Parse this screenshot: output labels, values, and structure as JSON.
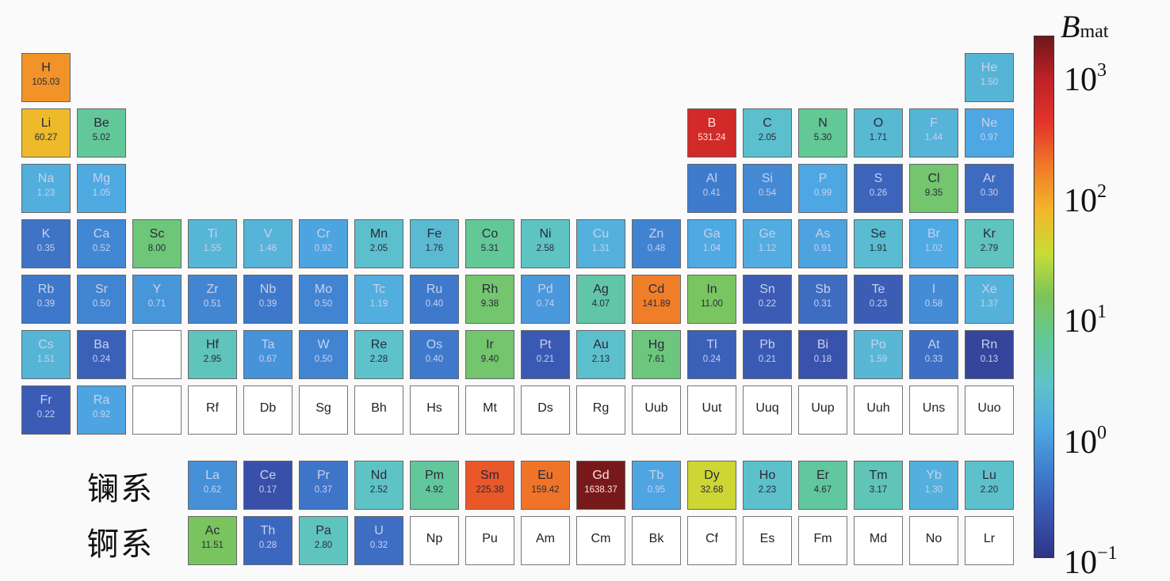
{
  "chart_data": {
    "type": "heatmap",
    "layout": "periodic-table",
    "colorbar": {
      "title": "B",
      "title_subscript": "mat",
      "scale": "log",
      "range": [
        0.085,
        1800
      ],
      "ticks": [
        {
          "base": "10",
          "exp": "3",
          "value": 1000
        },
        {
          "base": "10",
          "exp": "2",
          "value": 100
        },
        {
          "base": "10",
          "exp": "1",
          "value": 10
        },
        {
          "base": "10",
          "exp": "0",
          "value": 1
        },
        {
          "base": "10",
          "exp": "−1",
          "value": 0.1
        }
      ],
      "colormap": [
        "#2e3585",
        "#3a55b0",
        "#3f7fcf",
        "#4fa9e3",
        "#5ec3c9",
        "#62c895",
        "#7cc45a",
        "#c5dd35",
        "#f2b62a",
        "#f07a28",
        "#e4342a",
        "#c02128",
        "#6e1818"
      ]
    },
    "series_labels": {
      "lanthanides": "镧系",
      "actinides": "锕系"
    },
    "elements": [
      {
        "s": "H",
        "v": "105.03",
        "p": 1,
        "g": 1
      },
      {
        "s": "He",
        "v": "1.50",
        "p": 1,
        "g": 18
      },
      {
        "s": "Li",
        "v": "60.27",
        "p": 2,
        "g": 1
      },
      {
        "s": "Be",
        "v": "5.02",
        "p": 2,
        "g": 2
      },
      {
        "s": "B",
        "v": "531.24",
        "p": 2,
        "g": 13
      },
      {
        "s": "C",
        "v": "2.05",
        "p": 2,
        "g": 14
      },
      {
        "s": "N",
        "v": "5.30",
        "p": 2,
        "g": 15
      },
      {
        "s": "O",
        "v": "1.71",
        "p": 2,
        "g": 16
      },
      {
        "s": "F",
        "v": "1.44",
        "p": 2,
        "g": 17
      },
      {
        "s": "Ne",
        "v": "0.97",
        "p": 2,
        "g": 18
      },
      {
        "s": "Na",
        "v": "1.23",
        "p": 3,
        "g": 1
      },
      {
        "s": "Mg",
        "v": "1.05",
        "p": 3,
        "g": 2
      },
      {
        "s": "Al",
        "v": "0.41",
        "p": 3,
        "g": 13
      },
      {
        "s": "Si",
        "v": "0.54",
        "p": 3,
        "g": 14
      },
      {
        "s": "P",
        "v": "0.99",
        "p": 3,
        "g": 15
      },
      {
        "s": "S",
        "v": "0.26",
        "p": 3,
        "g": 16
      },
      {
        "s": "Cl",
        "v": "9.35",
        "p": 3,
        "g": 17
      },
      {
        "s": "Ar",
        "v": "0.30",
        "p": 3,
        "g": 18
      },
      {
        "s": "K",
        "v": "0.35",
        "p": 4,
        "g": 1
      },
      {
        "s": "Ca",
        "v": "0.52",
        "p": 4,
        "g": 2
      },
      {
        "s": "Sc",
        "v": "8.00",
        "p": 4,
        "g": 3
      },
      {
        "s": "Ti",
        "v": "1.55",
        "p": 4,
        "g": 4
      },
      {
        "s": "V",
        "v": "1.46",
        "p": 4,
        "g": 5
      },
      {
        "s": "Cr",
        "v": "0.92",
        "p": 4,
        "g": 6
      },
      {
        "s": "Mn",
        "v": "2.05",
        "p": 4,
        "g": 7
      },
      {
        "s": "Fe",
        "v": "1.76",
        "p": 4,
        "g": 8
      },
      {
        "s": "Co",
        "v": "5.31",
        "p": 4,
        "g": 9
      },
      {
        "s": "Ni",
        "v": "2.58",
        "p": 4,
        "g": 10
      },
      {
        "s": "Cu",
        "v": "1.31",
        "p": 4,
        "g": 11
      },
      {
        "s": "Zn",
        "v": "0.48",
        "p": 4,
        "g": 12
      },
      {
        "s": "Ga",
        "v": "1.04",
        "p": 4,
        "g": 13
      },
      {
        "s": "Ge",
        "v": "1.12",
        "p": 4,
        "g": 14
      },
      {
        "s": "As",
        "v": "0.91",
        "p": 4,
        "g": 15
      },
      {
        "s": "Se",
        "v": "1.91",
        "p": 4,
        "g": 16
      },
      {
        "s": "Br",
        "v": "1.02",
        "p": 4,
        "g": 17
      },
      {
        "s": "Kr",
        "v": "2.79",
        "p": 4,
        "g": 18
      },
      {
        "s": "Rb",
        "v": "0.39",
        "p": 5,
        "g": 1
      },
      {
        "s": "Sr",
        "v": "0.50",
        "p": 5,
        "g": 2
      },
      {
        "s": "Y",
        "v": "0.71",
        "p": 5,
        "g": 3
      },
      {
        "s": "Zr",
        "v": "0.51",
        "p": 5,
        "g": 4
      },
      {
        "s": "Nb",
        "v": "0.39",
        "p": 5,
        "g": 5
      },
      {
        "s": "Mo",
        "v": "0.50",
        "p": 5,
        "g": 6
      },
      {
        "s": "Tc",
        "v": "1.19",
        "p": 5,
        "g": 7
      },
      {
        "s": "Ru",
        "v": "0.40",
        "p": 5,
        "g": 8
      },
      {
        "s": "Rh",
        "v": "9.38",
        "p": 5,
        "g": 9
      },
      {
        "s": "Pd",
        "v": "0.74",
        "p": 5,
        "g": 10
      },
      {
        "s": "Ag",
        "v": "4.07",
        "p": 5,
        "g": 11
      },
      {
        "s": "Cd",
        "v": "141.89",
        "p": 5,
        "g": 12
      },
      {
        "s": "In",
        "v": "11.00",
        "p": 5,
        "g": 13
      },
      {
        "s": "Sn",
        "v": "0.22",
        "p": 5,
        "g": 14
      },
      {
        "s": "Sb",
        "v": "0.31",
        "p": 5,
        "g": 15
      },
      {
        "s": "Te",
        "v": "0.23",
        "p": 5,
        "g": 16
      },
      {
        "s": "I",
        "v": "0.58",
        "p": 5,
        "g": 17
      },
      {
        "s": "Xe",
        "v": "1.37",
        "p": 5,
        "g": 18
      },
      {
        "s": "Cs",
        "v": "1.51",
        "p": 6,
        "g": 1
      },
      {
        "s": "Ba",
        "v": "0.24",
        "p": 6,
        "g": 2
      },
      {
        "s": "",
        "v": null,
        "p": 6,
        "g": 3
      },
      {
        "s": "Hf",
        "v": "2.95",
        "p": 6,
        "g": 4
      },
      {
        "s": "Ta",
        "v": "0.67",
        "p": 6,
        "g": 5
      },
      {
        "s": "W",
        "v": "0.50",
        "p": 6,
        "g": 6
      },
      {
        "s": "Re",
        "v": "2.28",
        "p": 6,
        "g": 7
      },
      {
        "s": "Os",
        "v": "0.40",
        "p": 6,
        "g": 8
      },
      {
        "s": "Ir",
        "v": "9.40",
        "p": 6,
        "g": 9
      },
      {
        "s": "Pt",
        "v": "0.21",
        "p": 6,
        "g": 10
      },
      {
        "s": "Au",
        "v": "2.13",
        "p": 6,
        "g": 11
      },
      {
        "s": "Hg",
        "v": "7.61",
        "p": 6,
        "g": 12
      },
      {
        "s": "Tl",
        "v": "0.24",
        "p": 6,
        "g": 13
      },
      {
        "s": "Pb",
        "v": "0.21",
        "p": 6,
        "g": 14
      },
      {
        "s": "Bi",
        "v": "0.18",
        "p": 6,
        "g": 15
      },
      {
        "s": "Po",
        "v": "1.59",
        "p": 6,
        "g": 16
      },
      {
        "s": "At",
        "v": "0.33",
        "p": 6,
        "g": 17
      },
      {
        "s": "Rn",
        "v": "0.13",
        "p": 6,
        "g": 18
      },
      {
        "s": "Fr",
        "v": "0.22",
        "p": 7,
        "g": 1
      },
      {
        "s": "Ra",
        "v": "0.92",
        "p": 7,
        "g": 2
      },
      {
        "s": "",
        "v": null,
        "p": 7,
        "g": 3
      },
      {
        "s": "Rf",
        "v": null,
        "p": 7,
        "g": 4
      },
      {
        "s": "Db",
        "v": null,
        "p": 7,
        "g": 5
      },
      {
        "s": "Sg",
        "v": null,
        "p": 7,
        "g": 6
      },
      {
        "s": "Bh",
        "v": null,
        "p": 7,
        "g": 7
      },
      {
        "s": "Hs",
        "v": null,
        "p": 7,
        "g": 8
      },
      {
        "s": "Mt",
        "v": null,
        "p": 7,
        "g": 9
      },
      {
        "s": "Ds",
        "v": null,
        "p": 7,
        "g": 10
      },
      {
        "s": "Rg",
        "v": null,
        "p": 7,
        "g": 11
      },
      {
        "s": "Uub",
        "v": null,
        "p": 7,
        "g": 12
      },
      {
        "s": "Uut",
        "v": null,
        "p": 7,
        "g": 13
      },
      {
        "s": "Uuq",
        "v": null,
        "p": 7,
        "g": 14
      },
      {
        "s": "Uup",
        "v": null,
        "p": 7,
        "g": 15
      },
      {
        "s": "Uuh",
        "v": null,
        "p": 7,
        "g": 16
      },
      {
        "s": "Uns",
        "v": null,
        "p": 7,
        "g": 17
      },
      {
        "s": "Uuo",
        "v": null,
        "p": 7,
        "g": 18
      },
      {
        "s": "La",
        "v": "0.62",
        "p": "La",
        "g": 4
      },
      {
        "s": "Ce",
        "v": "0.17",
        "p": "La",
        "g": 5
      },
      {
        "s": "Pr",
        "v": "0.37",
        "p": "La",
        "g": 6
      },
      {
        "s": "Nd",
        "v": "2.52",
        "p": "La",
        "g": 7
      },
      {
        "s": "Pm",
        "v": "4.92",
        "p": "La",
        "g": 8
      },
      {
        "s": "Sm",
        "v": "225.38",
        "p": "La",
        "g": 9
      },
      {
        "s": "Eu",
        "v": "159.42",
        "p": "La",
        "g": 10
      },
      {
        "s": "Gd",
        "v": "1638.37",
        "p": "La",
        "g": 11
      },
      {
        "s": "Tb",
        "v": "0.95",
        "p": "La",
        "g": 12
      },
      {
        "s": "Dy",
        "v": "32.68",
        "p": "La",
        "g": 13
      },
      {
        "s": "Ho",
        "v": "2.23",
        "p": "La",
        "g": 14
      },
      {
        "s": "Er",
        "v": "4.67",
        "p": "La",
        "g": 15
      },
      {
        "s": "Tm",
        "v": "3.17",
        "p": "La",
        "g": 16
      },
      {
        "s": "Yb",
        "v": "1.30",
        "p": "La",
        "g": 17
      },
      {
        "s": "Lu",
        "v": "2.20",
        "p": "La",
        "g": 18
      },
      {
        "s": "Ac",
        "v": "11.51",
        "p": "Ac",
        "g": 4
      },
      {
        "s": "Th",
        "v": "0.28",
        "p": "Ac",
        "g": 5
      },
      {
        "s": "Pa",
        "v": "2.80",
        "p": "Ac",
        "g": 6
      },
      {
        "s": "U",
        "v": "0.32",
        "p": "Ac",
        "g": 7
      },
      {
        "s": "Np",
        "v": null,
        "p": "Ac",
        "g": 8
      },
      {
        "s": "Pu",
        "v": null,
        "p": "Ac",
        "g": 9
      },
      {
        "s": "Am",
        "v": null,
        "p": "Ac",
        "g": 10
      },
      {
        "s": "Cm",
        "v": null,
        "p": "Ac",
        "g": 11
      },
      {
        "s": "Bk",
        "v": null,
        "p": "Ac",
        "g": 12
      },
      {
        "s": "Cf",
        "v": null,
        "p": "Ac",
        "g": 13
      },
      {
        "s": "Es",
        "v": null,
        "p": "Ac",
        "g": 14
      },
      {
        "s": "Fm",
        "v": null,
        "p": "Ac",
        "g": 15
      },
      {
        "s": "Md",
        "v": null,
        "p": "Ac",
        "g": 16
      },
      {
        "s": "No",
        "v": null,
        "p": "Ac",
        "g": 17
      },
      {
        "s": "Lr",
        "v": null,
        "p": "Ac",
        "g": 18
      }
    ]
  }
}
